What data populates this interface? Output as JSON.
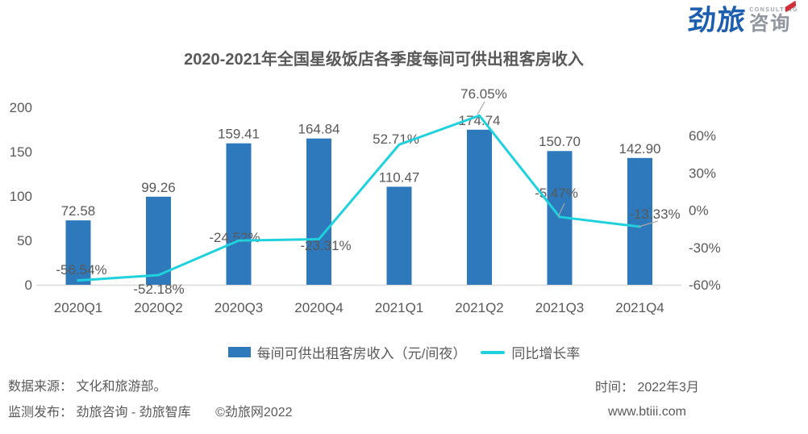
{
  "brand": {
    "name_cn": "劲旅",
    "name_en": "CONSULTING",
    "suffix_cn": "咨询"
  },
  "chart_data": {
    "type": "combo-bar-line",
    "title": "2020-2021年全国星级饭店各季度每间可供出租客房收入",
    "categories": [
      "2020Q1",
      "2020Q2",
      "2020Q3",
      "2020Q4",
      "2021Q1",
      "2021Q2",
      "2021Q3",
      "2021Q4"
    ],
    "series": [
      {
        "name": "每间可供出租客房收入（元/间夜）",
        "type": "bar",
        "y_axis": "left",
        "color": "#2e79bc",
        "values": [
          72.58,
          99.26,
          159.41,
          164.84,
          110.47,
          174.74,
          150.7,
          142.9
        ],
        "labels": [
          "72.58",
          "99.26",
          "159.41",
          "164.84",
          "110.47",
          "174.74",
          "150.70",
          "142.90"
        ]
      },
      {
        "name": "同比增长率",
        "type": "line",
        "y_axis": "right",
        "color": "#1fd1dc",
        "values": [
          -56.54,
          -52.18,
          -24.52,
          -23.31,
          52.71,
          76.05,
          -5.47,
          -13.33
        ],
        "labels": [
          "-56.54%",
          "-52.18%",
          "-24.52%",
          "-23.31%",
          "52.71%",
          "76.05%",
          "-5.47%",
          "-13.33%"
        ]
      }
    ],
    "left_axis": {
      "min": 0,
      "max": 200,
      "ticks": [
        0,
        50,
        100,
        150,
        200
      ]
    },
    "right_axis": {
      "min": -60,
      "max": 60,
      "ticks": [
        -60,
        -30,
        0,
        30,
        60
      ],
      "tick_suffix": "%"
    },
    "grid": false,
    "legend_position": "bottom",
    "label_color": "#595959",
    "axis_line_color": "#d9d9d9",
    "leader_line_color": "#a6a6a6"
  },
  "footer": {
    "source_line": "数据来源： 文化和旅游部。",
    "publisher_line": "监测发布： 劲旅咨询 - 劲旅智库",
    "copyright": "©劲旅网2022",
    "time_line": "时间： 2022年3月",
    "website": "www.btiii.com"
  }
}
